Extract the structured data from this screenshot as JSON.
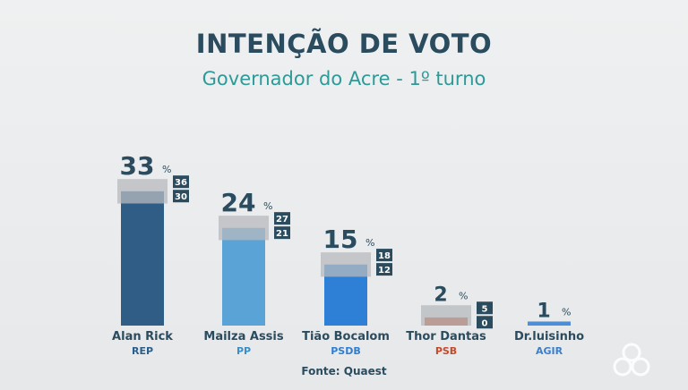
{
  "title": "INTENÇÃO DE VOTO",
  "subtitle": "Governador do Acre - 1º turno",
  "source": "Fonte: Quaest",
  "colors": {
    "title": "#2b4c5e",
    "subtitle": "#2c9a97",
    "margin_band": "#b7babd",
    "range_box": "#2b4c5e"
  },
  "chart_data": {
    "type": "bar",
    "title": "INTENÇÃO DE VOTO",
    "subtitle": "Governador do Acre - 1º turno",
    "unit": "%",
    "categories": [
      "Alan Rick",
      "Mailza Assis",
      "Tião Bocalom",
      "Thor Dantas",
      "Dr.luisinho"
    ],
    "parties": [
      "REP",
      "PP",
      "PSDB",
      "PSB",
      "AGIR"
    ],
    "values": [
      33,
      24,
      15,
      2,
      1
    ],
    "range_high": [
      36,
      27,
      18,
      5,
      null
    ],
    "range_low": [
      30,
      21,
      12,
      0,
      null
    ],
    "bar_colors": [
      "#305d86",
      "#5aa3d6",
      "#2e7fd6",
      "#c7492a",
      "#4a8fd8"
    ],
    "party_colors": [
      "#2b5f8c",
      "#3a8fc9",
      "#2f7fd0",
      "#c7492a",
      "#3a7fd0"
    ],
    "ylim": [
      0,
      36
    ]
  }
}
